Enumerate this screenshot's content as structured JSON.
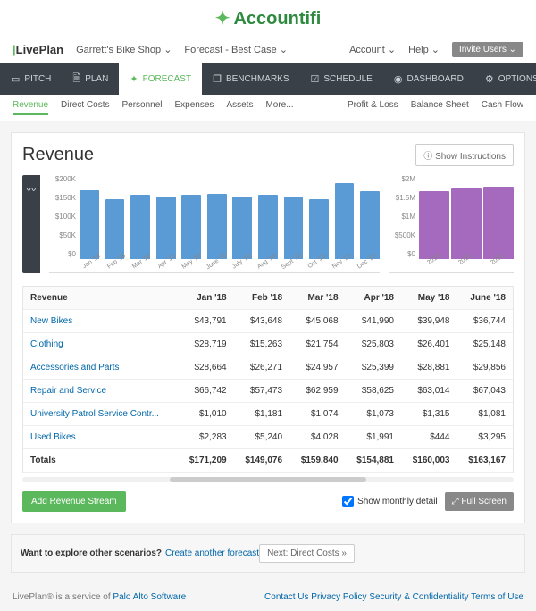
{
  "brand": {
    "name": "Accountifi"
  },
  "liveplan": {
    "label": "LivePlan"
  },
  "header": {
    "company": "Garrett's Bike Shop",
    "forecast": "Forecast - Best Case",
    "account": "Account",
    "help": "Help",
    "invite": "Invite Users"
  },
  "nav": {
    "items": [
      {
        "label": "PITCH",
        "icon": "▭"
      },
      {
        "label": "PLAN",
        "icon": "🗎"
      },
      {
        "label": "FORECAST",
        "icon": "✦",
        "active": true
      },
      {
        "label": "BENCHMARKS",
        "icon": "❐"
      },
      {
        "label": "SCHEDULE",
        "icon": "☑"
      },
      {
        "label": "DASHBOARD",
        "icon": "◉"
      },
      {
        "label": "OPTIONS",
        "icon": "⚙"
      }
    ]
  },
  "subnav": {
    "left": [
      "Revenue",
      "Direct Costs",
      "Personnel",
      "Expenses",
      "Assets",
      "More..."
    ],
    "right": [
      "Profit & Loss",
      "Balance Sheet",
      "Cash Flow"
    ],
    "active": "Revenue"
  },
  "page": {
    "title": "Revenue",
    "instructions": "Show Instructions"
  },
  "chart_monthly": {
    "type": "bar",
    "ylabels": [
      "$200K",
      "$150K",
      "$100K",
      "$50K",
      "$0"
    ],
    "ylim": 200,
    "bar_color": "#5b9bd5",
    "categories": [
      "Jan '18",
      "Feb '18",
      "Mar '18",
      "Apr '18",
      "May '18",
      "June '18",
      "July '18",
      "Aug '18",
      "Sept '18",
      "Oct '18",
      "Nov '18",
      "Dec '18"
    ],
    "values": [
      171,
      149,
      160,
      155,
      160,
      163,
      155,
      160,
      155,
      148,
      190,
      170
    ]
  },
  "chart_yearly": {
    "type": "bar",
    "ylabels": [
      "$2M",
      "$1.5M",
      "$1M",
      "$500K",
      "$0"
    ],
    "ylim": 2.0,
    "bar_color": "#a569bd",
    "categories": [
      "2018",
      "2019",
      "2020"
    ],
    "values": [
      1.7,
      1.75,
      1.8
    ]
  },
  "table": {
    "header": [
      "Revenue",
      "Jan '18",
      "Feb '18",
      "Mar '18",
      "Apr '18",
      "May '18",
      "June '18"
    ],
    "rows": [
      [
        "New Bikes",
        "$43,791",
        "$43,648",
        "$45,068",
        "$41,990",
        "$39,948",
        "$36,744"
      ],
      [
        "Clothing",
        "$28,719",
        "$15,263",
        "$21,754",
        "$25,803",
        "$26,401",
        "$25,148"
      ],
      [
        "Accessories and Parts",
        "$28,664",
        "$26,271",
        "$24,957",
        "$25,399",
        "$28,881",
        "$29,856"
      ],
      [
        "Repair and Service",
        "$66,742",
        "$57,473",
        "$62,959",
        "$58,625",
        "$63,014",
        "$67,043"
      ],
      [
        "University Patrol Service Contr...",
        "$1,010",
        "$1,181",
        "$1,074",
        "$1,073",
        "$1,315",
        "$1,081"
      ],
      [
        "Used Bikes",
        "$2,283",
        "$5,240",
        "$4,028",
        "$1,991",
        "$444",
        "$3,295"
      ]
    ],
    "totals": [
      "Totals",
      "$171,209",
      "$149,076",
      "$159,840",
      "$154,881",
      "$160,003",
      "$163,167"
    ]
  },
  "actions": {
    "add": "Add Revenue Stream",
    "monthly": "Show monthly detail",
    "fullscreen": "Full Screen"
  },
  "explore": {
    "text": "Want to explore other scenarios?",
    "link": "Create another forecast",
    "next": "Next: Direct Costs »"
  },
  "footer": {
    "text": "LivePlan® is a service of ",
    "company": "Palo Alto Software",
    "links": [
      "Contact Us",
      "Privacy Policy",
      "Security & Confidentiality",
      "Terms of Use"
    ]
  }
}
